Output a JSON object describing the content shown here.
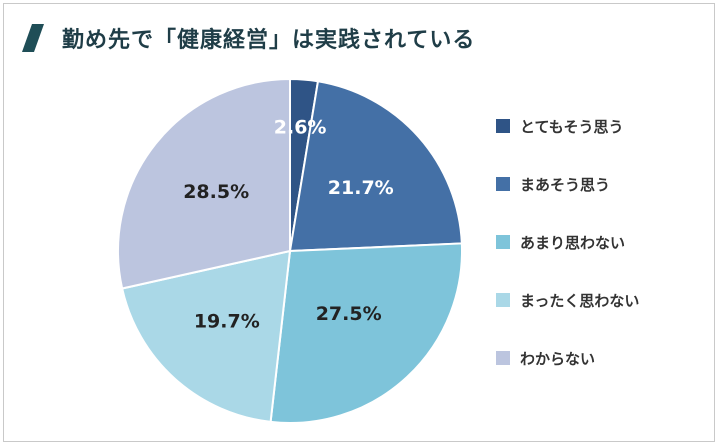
{
  "header": {
    "title": "勤め先で「健康経営」は実践されている"
  },
  "colors": {
    "title_mark": "#1f4e57",
    "title_text": "#1f3d47"
  },
  "chart_data": {
    "type": "pie",
    "title": "勤め先で「健康経営」は実践されている",
    "legend_position": "right",
    "slices": [
      {
        "name": "とてもそう思う",
        "value": 2.6,
        "label": "2.6%",
        "color": "#2f5486",
        "label_color": "#ffffff"
      },
      {
        "name": "まあそう思う",
        "value": 21.7,
        "label": "21.7%",
        "color": "#4470a6",
        "label_color": "#ffffff"
      },
      {
        "name": "あまり思わない",
        "value": 27.5,
        "label": "27.5%",
        "color": "#7ec4da",
        "label_color": "#222222"
      },
      {
        "name": "まったく思わない",
        "value": 19.7,
        "label": "19.7%",
        "color": "#aad8e7",
        "label_color": "#222222"
      },
      {
        "name": "わからない",
        "value": 28.5,
        "label": "28.5%",
        "color": "#bcc5df",
        "label_color": "#222222"
      }
    ]
  }
}
